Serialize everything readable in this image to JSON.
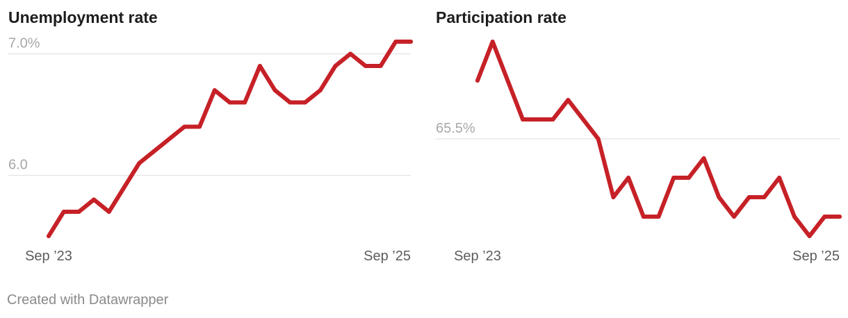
{
  "colors": {
    "line": "#c62127",
    "grid": "#e3e3e3",
    "ytick": "#a8a8a8",
    "xtick": "#5c5c5c"
  },
  "footer": "Created with Datawrapper",
  "chart_data": [
    {
      "type": "line",
      "title": "Unemployment rate",
      "x": [
        "2023-09",
        "2023-10",
        "2023-11",
        "2023-12",
        "2024-01",
        "2024-02",
        "2024-03",
        "2024-04",
        "2024-05",
        "2024-06",
        "2024-07",
        "2024-08",
        "2024-09",
        "2024-10",
        "2024-11",
        "2024-12",
        "2025-01",
        "2025-02",
        "2025-03",
        "2025-04",
        "2025-05",
        "2025-06",
        "2025-07",
        "2025-08",
        "2025-09"
      ],
      "series": [
        {
          "values": [
            5.5,
            5.7,
            5.7,
            5.8,
            5.7,
            5.9,
            6.1,
            6.2,
            6.3,
            6.4,
            6.4,
            6.7,
            6.6,
            6.6,
            6.9,
            6.7,
            6.6,
            6.6,
            6.7,
            6.9,
            7.0,
            6.9,
            6.9,
            7.1,
            7.1
          ]
        }
      ],
      "ylim": [
        5.5,
        7.1
      ],
      "yticks": [
        6.0,
        7.0
      ],
      "ytick_labels": [
        "6.0",
        "7.0%"
      ],
      "xtick_labels": [
        "Sep ’23",
        "Sep ’25"
      ],
      "grid": true
    },
    {
      "type": "line",
      "title": "Participation rate",
      "x": [
        "2023-09",
        "2023-10",
        "2023-11",
        "2023-12",
        "2024-01",
        "2024-02",
        "2024-03",
        "2024-04",
        "2024-05",
        "2024-06",
        "2024-07",
        "2024-08",
        "2024-09",
        "2024-10",
        "2024-11",
        "2024-12",
        "2025-01",
        "2025-02",
        "2025-03",
        "2025-04",
        "2025-05",
        "2025-06",
        "2025-07",
        "2025-08",
        "2025-09"
      ],
      "series": [
        {
          "values": [
            65.8,
            66.0,
            65.8,
            65.6,
            65.6,
            65.6,
            65.7,
            65.6,
            65.5,
            65.2,
            65.3,
            65.1,
            65.1,
            65.3,
            65.3,
            65.4,
            65.2,
            65.1,
            65.2,
            65.2,
            65.3,
            65.1,
            65.0,
            65.1,
            65.1
          ]
        }
      ],
      "ylim": [
        65.0,
        66.0
      ],
      "yticks": [
        65.5
      ],
      "ytick_labels": [
        "65.5%"
      ],
      "xtick_labels": [
        "Sep ’23",
        "Sep ’25"
      ],
      "grid": true
    }
  ]
}
